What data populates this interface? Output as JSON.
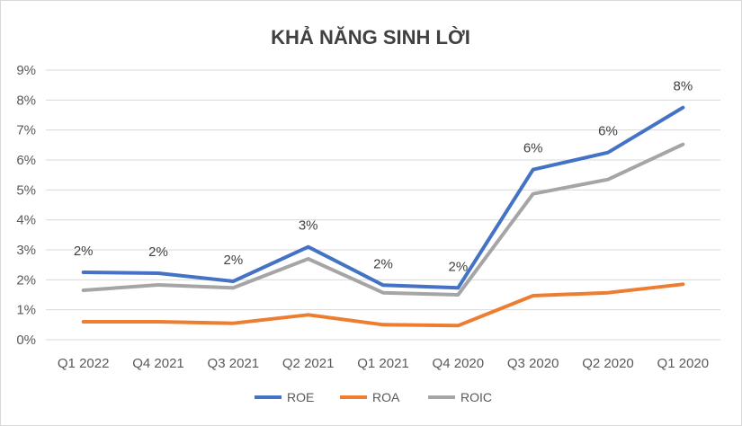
{
  "chart_data": {
    "type": "line",
    "title": "KHẢ NĂNG SINH LỜI",
    "xlabel": "",
    "ylabel": "",
    "categories": [
      "Q1 2022",
      "Q4 2021",
      "Q3 2021",
      "Q2 2021",
      "Q1 2021",
      "Q4 2020",
      "Q3 2020",
      "Q2 2020",
      "Q1 2020"
    ],
    "y_ticks": [
      "0%",
      "1%",
      "2%",
      "3%",
      "4%",
      "5%",
      "6%",
      "7%",
      "8%",
      "9%"
    ],
    "ylim": [
      0,
      9
    ],
    "grid": "horizontal",
    "legend_position": "bottom",
    "series": [
      {
        "name": "ROE",
        "color": "#4472c4",
        "values": [
          2.25,
          2.22,
          1.95,
          3.1,
          1.82,
          1.73,
          5.68,
          6.25,
          7.75
        ],
        "data_labels": [
          "2%",
          "2%",
          "2%",
          "3%",
          "2%",
          "2%",
          "6%",
          "6%",
          "8%"
        ]
      },
      {
        "name": "ROA",
        "color": "#ed7d31",
        "values": [
          0.6,
          0.6,
          0.55,
          0.83,
          0.5,
          0.47,
          1.47,
          1.57,
          1.85
        ]
      },
      {
        "name": "ROIC",
        "color": "#a5a5a5",
        "values": [
          1.65,
          1.83,
          1.73,
          2.7,
          1.57,
          1.5,
          4.87,
          5.35,
          6.52
        ]
      }
    ]
  }
}
